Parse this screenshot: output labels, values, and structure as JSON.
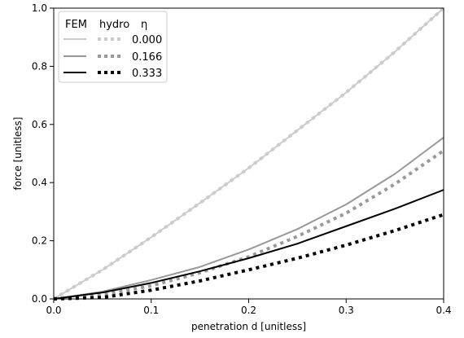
{
  "chart_data": {
    "type": "line",
    "title": "",
    "xlabel": "penetration d [unitless]",
    "ylabel": "force [unitless]",
    "xlim": [
      0.0,
      0.4
    ],
    "ylim": [
      0.0,
      1.0
    ],
    "x_ticks": [
      0.0,
      0.1,
      0.2,
      0.3,
      0.4
    ],
    "x_tick_labels": [
      "0.0",
      "0.1",
      "0.2",
      "0.3",
      "0.4"
    ],
    "y_ticks": [
      0.0,
      0.2,
      0.4,
      0.6,
      0.8,
      1.0
    ],
    "y_tick_labels": [
      "0.0",
      "0.2",
      "0.4",
      "0.6",
      "0.8",
      "1.0"
    ],
    "grid": false,
    "legend": {
      "placement": "top-left",
      "header": [
        "FEM",
        "hydro",
        "η"
      ],
      "rows": [
        "0.000",
        "0.166",
        "0.333"
      ]
    },
    "x": [
      0.0,
      0.05,
      0.1,
      0.15,
      0.2,
      0.25,
      0.3,
      0.35,
      0.4
    ],
    "series": [
      {
        "eta": "0.000",
        "method": "FEM",
        "color": "#cccccc",
        "style": "solid",
        "values": [
          0.0,
          0.1,
          0.212,
          0.33,
          0.45,
          0.58,
          0.71,
          0.85,
          1.0
        ]
      },
      {
        "eta": "0.000",
        "method": "hydro",
        "color": "#cccccc",
        "style": "dotted",
        "values": [
          0.0,
          0.1,
          0.212,
          0.33,
          0.45,
          0.58,
          0.71,
          0.85,
          1.0
        ]
      },
      {
        "eta": "0.166",
        "method": "FEM",
        "color": "#999999",
        "style": "solid",
        "values": [
          0.0,
          0.025,
          0.065,
          0.11,
          0.17,
          0.24,
          0.325,
          0.43,
          0.555
        ]
      },
      {
        "eta": "0.166",
        "method": "hydro",
        "color": "#999999",
        "style": "dotted",
        "values": [
          0.0,
          0.015,
          0.045,
          0.09,
          0.145,
          0.215,
          0.295,
          0.395,
          0.51
        ]
      },
      {
        "eta": "0.333",
        "method": "FEM",
        "color": "#000000",
        "style": "solid",
        "values": [
          0.0,
          0.022,
          0.055,
          0.095,
          0.14,
          0.19,
          0.25,
          0.31,
          0.375
        ]
      },
      {
        "eta": "0.333",
        "method": "hydro",
        "color": "#000000",
        "style": "dotted",
        "values": [
          0.0,
          0.005,
          0.03,
          0.062,
          0.1,
          0.14,
          0.185,
          0.235,
          0.29
        ]
      }
    ]
  }
}
